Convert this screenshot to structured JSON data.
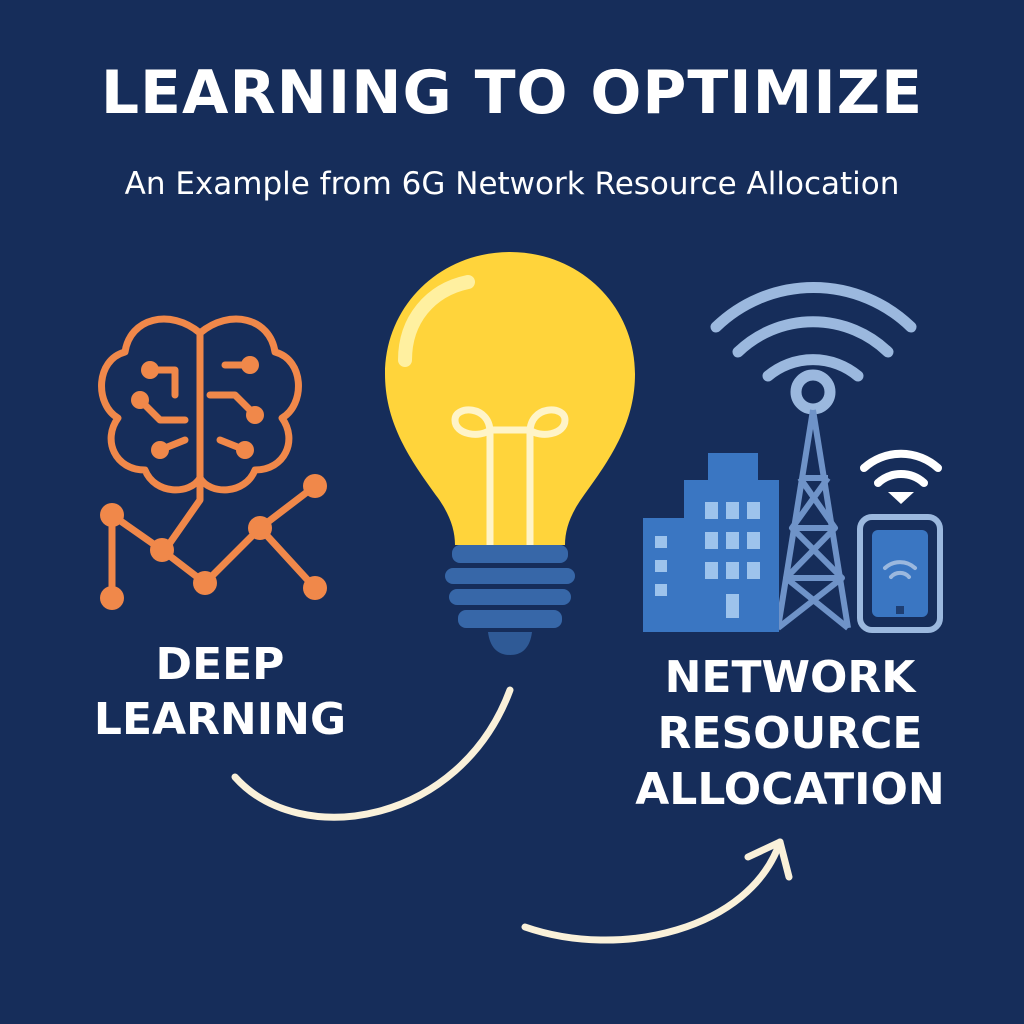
{
  "header": {
    "title": "LEARNING TO OPTIMIZE",
    "subtitle": "An Example from 6G Network Resource Allocation"
  },
  "left": {
    "label_lines": [
      "DEEP",
      "LEARNING"
    ],
    "icon": "brain-network-icon"
  },
  "center": {
    "icon": "lightbulb-icon"
  },
  "right": {
    "label_lines": [
      "NETWORK",
      "RESOURCE",
      "ALLOCATION"
    ],
    "icons": [
      "wifi-signal-icon",
      "buildings-icon",
      "cell-tower-icon",
      "smartphone-icon"
    ]
  },
  "colors": {
    "background": "#162D5A",
    "brain_orange": "#F0884A",
    "bulb_yellow": "#FFD43B",
    "bulb_base": "#3767A8",
    "network_blue": "#3A76C2",
    "signal_light": "#9BB8DE",
    "arrow_cream": "#FAF1DA"
  }
}
